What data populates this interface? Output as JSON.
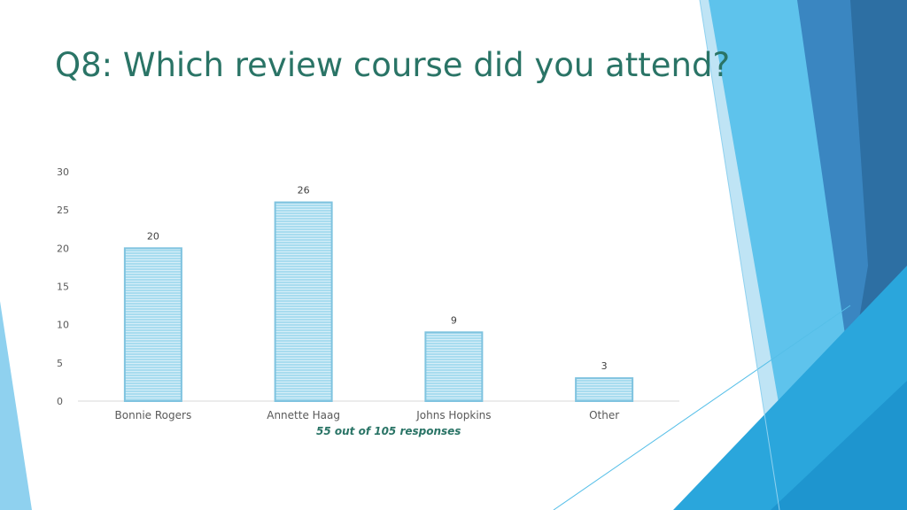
{
  "slide": {
    "title": "Q8: Which review course did you attend?",
    "note": "55 out of 105 responses",
    "title_color": "#2a7466"
  },
  "theme": {
    "accent_light": "#8fd1ef",
    "accent_mid": "#3fb3e4",
    "accent_dark": "#2d6fa3",
    "bar_fill": "#a8dcef",
    "bar_border": "#7fc3df"
  },
  "chart_data": {
    "type": "bar",
    "categories": [
      "Bonnie Rogers",
      "Annette Haag",
      "Johns Hopkins",
      "Other"
    ],
    "values": [
      20,
      26,
      9,
      3
    ],
    "data_labels": [
      "20",
      "26",
      "9",
      "3"
    ],
    "ylim": [
      0,
      30
    ],
    "yticks": [
      0,
      5,
      10,
      15,
      20,
      25,
      30
    ],
    "grid": false,
    "legend": "none"
  }
}
